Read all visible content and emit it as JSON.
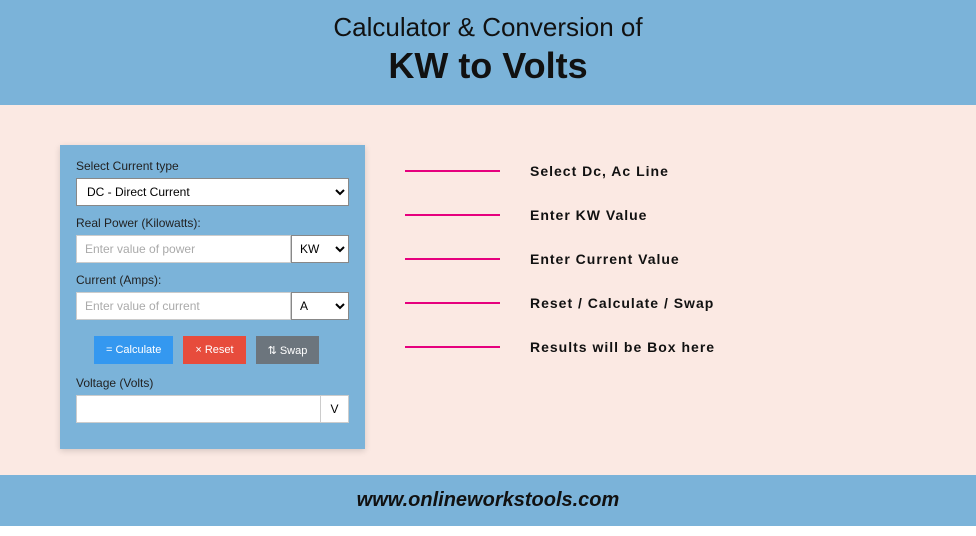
{
  "header": {
    "line1": "Calculator & Conversion of",
    "line2": "KW to Volts"
  },
  "calc": {
    "current_type_label": "Select Current type",
    "current_type_value": "DC - Direct Current",
    "power_label": "Real Power (Kilowatts):",
    "power_placeholder": "Enter value of power",
    "power_unit": "KW",
    "current_label": "Current (Amps):",
    "current_placeholder": "Enter value of current",
    "current_unit": "A",
    "btn_calc": "= Calculate",
    "btn_reset": "× Reset",
    "btn_swap": "⇅ Swap",
    "voltage_label": "Voltage (Volts)",
    "voltage_unit": "V"
  },
  "annotations": [
    "Select Dc, Ac Line",
    "Enter KW Value",
    "Enter Current Value",
    "Reset / Calculate / Swap",
    "Results will be Box here"
  ],
  "footer": {
    "url": "www.onlineworkstools.com"
  },
  "colors": {
    "header_bg": "#7bb3d9",
    "main_bg": "#fbe9e3",
    "anno_line": "#e6007e",
    "btn_calc": "#3498f0",
    "btn_reset": "#e74c3c",
    "btn_swap": "#6c757d"
  }
}
